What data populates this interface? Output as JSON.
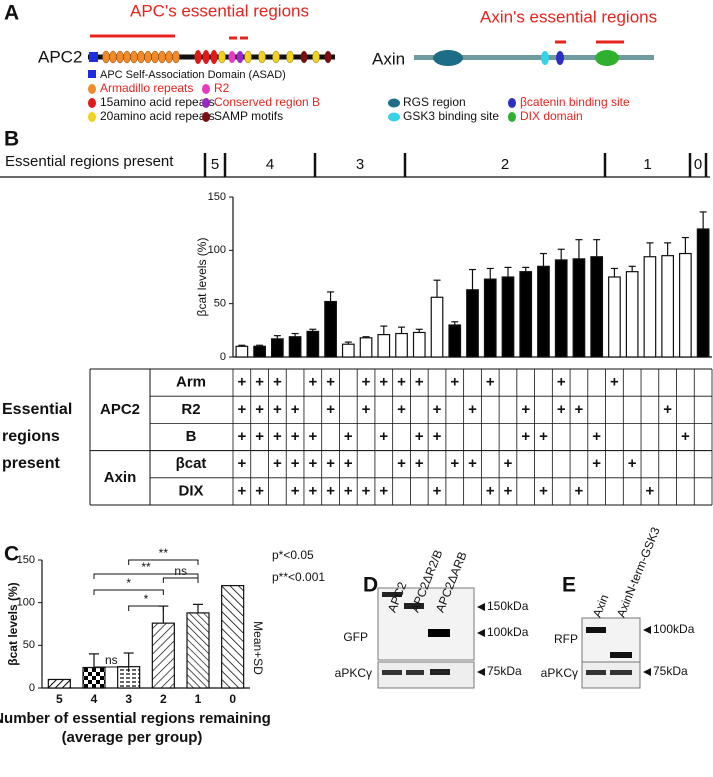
{
  "panel_a": {
    "label": "A",
    "apc_title": "APC's essential regions",
    "apc_name": "APC2",
    "apc_legend": [
      "APC Self-Association Domain (ASAD)",
      "Armadillo repeats",
      "15amino acid repeats",
      "20amino acid repeats",
      "R2",
      "Conserved region B",
      "SAMP motifs"
    ],
    "axin_title": "Axin's essential regions",
    "axin_name": "Axin",
    "axin_legend": [
      "RGS region",
      "GSK3 binding site",
      "βcatenin binding site",
      "DIX domain"
    ]
  },
  "chart_data": [
    {
      "type": "bar",
      "panel": "B",
      "header": "Essential regions present",
      "groups": [
        "5",
        "4",
        "3",
        "2",
        "1",
        "0"
      ],
      "ylabel": "βcat levels (%)",
      "ylim": [
        0,
        150
      ],
      "yticks": [
        0,
        50,
        100,
        150
      ],
      "values": [
        10,
        10,
        17,
        19,
        24,
        52,
        12,
        18,
        21,
        22,
        23,
        56,
        30,
        63,
        73,
        75,
        80,
        85,
        91,
        92,
        94,
        75,
        80,
        94,
        95,
        97,
        120
      ],
      "errors": [
        1,
        1,
        3,
        3,
        2,
        9,
        2,
        1,
        8,
        6,
        3,
        16,
        3,
        19,
        10,
        9,
        4,
        12,
        10,
        18,
        16,
        8,
        5,
        13,
        12,
        15,
        16
      ],
      "colors": [
        "#ffffff",
        "#000000",
        "#000000",
        "#000000",
        "#000000",
        "#000000",
        "#ffffff",
        "#ffffff",
        "#ffffff",
        "#ffffff",
        "#ffffff",
        "#ffffff",
        "#000000",
        "#000000",
        "#000000",
        "#000000",
        "#000000",
        "#000000",
        "#000000",
        "#000000",
        "#000000",
        "#ffffff",
        "#ffffff",
        "#ffffff",
        "#ffffff",
        "#ffffff",
        "#000000"
      ],
      "table": {
        "title": [
          "Essential",
          "regions",
          "present"
        ],
        "sections": [
          {
            "name": "APC2",
            "rows": [
              {
                "name": "Arm",
                "cells": [
                  "+",
                  "+",
                  "+",
                  null,
                  "+",
                  "+",
                  null,
                  "+",
                  "+",
                  "+",
                  "+",
                  null,
                  "+",
                  null,
                  "+",
                  null,
                  null,
                  null,
                  "+",
                  null,
                  null,
                  "+",
                  null,
                  null,
                  null,
                  null,
                  null
                ]
              },
              {
                "name": "R2",
                "cells": [
                  "+",
                  "+",
                  "+",
                  "+",
                  null,
                  "+",
                  null,
                  "+",
                  null,
                  "+",
                  null,
                  "+",
                  null,
                  "+",
                  null,
                  null,
                  "+",
                  null,
                  "+",
                  "+",
                  null,
                  null,
                  null,
                  null,
                  "+",
                  null,
                  null
                ]
              },
              {
                "name": "B",
                "cells": [
                  "+",
                  "+",
                  "+",
                  "+",
                  "+",
                  null,
                  "+",
                  null,
                  "+",
                  null,
                  "+",
                  "+",
                  null,
                  null,
                  null,
                  null,
                  "+",
                  "+",
                  null,
                  null,
                  "+",
                  null,
                  null,
                  null,
                  null,
                  "+",
                  null
                ]
              }
            ]
          },
          {
            "name": "Axin",
            "rows": [
              {
                "name": "βcat",
                "cells": [
                  "+",
                  null,
                  "+",
                  "+",
                  "+",
                  "+",
                  "+",
                  null,
                  null,
                  "+",
                  "+",
                  null,
                  "+",
                  "+",
                  null,
                  "+",
                  null,
                  null,
                  null,
                  null,
                  "+",
                  null,
                  "+",
                  null,
                  null,
                  null,
                  null
                ]
              },
              {
                "name": "DIX",
                "cells": [
                  "+",
                  "+",
                  null,
                  "+",
                  "+",
                  "+",
                  "+",
                  "+",
                  "+",
                  null,
                  null,
                  "+",
                  null,
                  null,
                  "+",
                  "+",
                  null,
                  "+",
                  null,
                  "+",
                  null,
                  null,
                  null,
                  "+",
                  null,
                  null,
                  null
                ]
              }
            ]
          }
        ]
      }
    },
    {
      "type": "bar",
      "panel": "C",
      "categories": [
        "5",
        "4",
        "3",
        "2",
        "1",
        "0"
      ],
      "values": [
        10,
        24,
        25,
        76,
        88,
        120
      ],
      "errors": [
        null,
        16,
        16,
        20,
        10,
        null
      ],
      "ylabel": "βcat levels (%)",
      "xlabel": [
        "Number of essential regions remaining",
        "(average per group)"
      ],
      "ylim": [
        0,
        150
      ],
      "yticks": [
        0,
        50,
        100,
        150
      ],
      "annotations": [
        "**",
        "**",
        "*",
        "*",
        "ns",
        "ns"
      ],
      "notes": [
        "p*<0.05",
        "p**<0.001"
      ],
      "stat_label": "Mean+SD"
    }
  ],
  "blot_d": {
    "label": "D",
    "lanes": [
      "APC2",
      "APC2ΔR2/B",
      "APC2ΔARB"
    ],
    "rows": [
      "GFP",
      "aPKCγ"
    ],
    "markers": [
      "150kDa",
      "100kDa",
      "75kDa"
    ]
  },
  "blot_e": {
    "label": "E",
    "lanes": [
      "Axin",
      "AxinN-term-GSK3"
    ],
    "rows": [
      "RFP",
      "aPKCγ"
    ],
    "markers": [
      "100kDa",
      "75kDa"
    ]
  }
}
